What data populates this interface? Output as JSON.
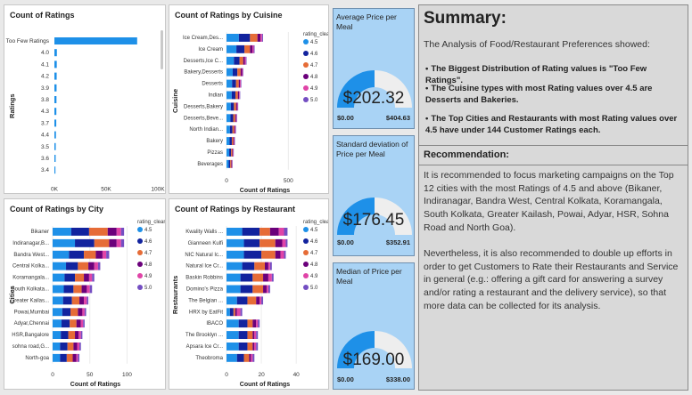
{
  "charts": {
    "ratings": {
      "title": "Count of Ratings",
      "ylabel": "Ratings",
      "xlabel": "Count of Ratings",
      "categories": [
        "Too Few Ratings",
        "4.0",
        "4.1",
        "4.2",
        "3.9",
        "3.8",
        "4.3",
        "3.7",
        "4.4",
        "3.5",
        "3.6",
        "3.4"
      ],
      "values": [
        80000,
        2400,
        2300,
        2200,
        2100,
        2000,
        1900,
        1800,
        1500,
        1300,
        1200,
        1000
      ],
      "ticks": [
        "0K",
        "50K",
        "100K"
      ],
      "tick_values": [
        0,
        50000,
        100000
      ],
      "bar_color": "#1e90e8"
    },
    "cuisine": {
      "title": "Count of Ratings by Cuisine",
      "ylabel": "Cuisine",
      "xlabel": "Count of Ratings",
      "legend_title": "rating_clean",
      "categories": [
        "Ice Cream,Des...",
        "Ice Cream",
        "Desserts,Ice C...",
        "Bakery,Desserts",
        "Desserts",
        "Indian",
        "Desserts,Bakery",
        "Desserts,Beve...",
        "North Indian...",
        "Bakery",
        "Pizzas",
        "Beverages"
      ],
      "ticks": [
        "0",
        "500"
      ],
      "tick_values": [
        0,
        500
      ],
      "xmax": 620
    },
    "city": {
      "title": "Count of Ratings by City",
      "ylabel": "Cities",
      "xlabel": "Count of Ratings",
      "legend_title": "rating_clean",
      "categories": [
        "Bikaner",
        "Indiranagar,B...",
        "Bandra West...",
        "Central Kolka...",
        "Koramangala...",
        "South Kolkata...",
        "Greater Kailas...",
        "Powai,Mumbai",
        "Adyar,Chennai",
        "HSR,Bangalore",
        "sohna road,G...",
        "North-goa"
      ],
      "ticks": [
        "0",
        "50",
        "100"
      ],
      "tick_values": [
        0,
        50,
        100
      ],
      "xmax": 115
    },
    "restaurant": {
      "title": "Count of Ratings by Restaurant",
      "ylabel": "Restaurants",
      "xlabel": "Count of Ratings",
      "legend_title": "rating_clean",
      "categories": [
        "Kwality Walls ...",
        "Gianneen Kulfi",
        "NIC Natural Ic...",
        "Natural Ice Cr...",
        "Baskin Robbins",
        "Domino's Pizza",
        "The Belgian ...",
        "HRX by EatFit",
        "IBACO",
        "The Brooklyn ...",
        "Apsara Ice Cr...",
        "Theobroma"
      ],
      "ticks": [
        "0",
        "20",
        "40"
      ],
      "tick_values": [
        0,
        20,
        40
      ],
      "xmax": 44
    },
    "legend": {
      "labels": [
        "4.5",
        "4.6",
        "4.7",
        "4.8",
        "4.9",
        "5.0"
      ],
      "colors": [
        "#1e90e8",
        "#12239e",
        "#e66c37",
        "#6b007b",
        "#e044a7",
        "#744ec2"
      ]
    },
    "stacked": {
      "cuisine": [
        [
          100,
          90,
          60,
          25,
          12,
          8
        ],
        [
          80,
          65,
          45,
          20,
          10,
          7
        ],
        [
          60,
          45,
          30,
          14,
          8,
          5
        ],
        [
          50,
          38,
          26,
          12,
          6,
          4
        ],
        [
          45,
          32,
          22,
          11,
          6,
          4
        ],
        [
          42,
          30,
          20,
          10,
          5,
          3
        ],
        [
          35,
          25,
          18,
          8,
          5,
          3
        ],
        [
          32,
          22,
          16,
          8,
          4,
          3
        ],
        [
          28,
          20,
          14,
          7,
          4,
          2
        ],
        [
          25,
          18,
          12,
          6,
          3,
          2
        ],
        [
          22,
          15,
          10,
          5,
          3,
          2
        ],
        [
          18,
          12,
          9,
          4,
          2,
          2
        ]
      ],
      "city": [
        [
          25,
          24,
          25,
          12,
          6,
          4
        ],
        [
          30,
          26,
          20,
          10,
          6,
          4
        ],
        [
          22,
          20,
          16,
          9,
          5,
          4
        ],
        [
          18,
          16,
          14,
          8,
          5,
          3
        ],
        [
          16,
          14,
          12,
          7,
          4,
          3
        ],
        [
          15,
          13,
          11,
          7,
          4,
          3
        ],
        [
          14,
          12,
          10,
          6,
          4,
          2
        ],
        [
          13,
          11,
          10,
          6,
          3,
          2
        ],
        [
          12,
          11,
          9,
          6,
          3,
          2
        ],
        [
          11,
          10,
          9,
          5,
          3,
          2
        ],
        [
          10,
          10,
          8,
          5,
          3,
          2
        ],
        [
          10,
          9,
          8,
          5,
          2,
          2
        ]
      ],
      "restaurant": [
        [
          9,
          10,
          6,
          5,
          3,
          2
        ],
        [
          10,
          9,
          9,
          4,
          2,
          1
        ],
        [
          10,
          10,
          8,
          3,
          2,
          1
        ],
        [
          9,
          7,
          6,
          2,
          1,
          1
        ],
        [
          8,
          7,
          6,
          3,
          2,
          1
        ],
        [
          8,
          7,
          6,
          2,
          1,
          1
        ],
        [
          6,
          6,
          5,
          2,
          1,
          1
        ],
        [
          2,
          2,
          1,
          1,
          2,
          1
        ],
        [
          7,
          5,
          3,
          2,
          1,
          1
        ],
        [
          7,
          5,
          3,
          1,
          1,
          1
        ],
        [
          7,
          5,
          3,
          1,
          1,
          1
        ],
        [
          6,
          4,
          3,
          1,
          1,
          1
        ]
      ]
    }
  },
  "cards": [
    {
      "title": "Average Price per Meal",
      "value": "$202.32",
      "min": "$0.00",
      "max": "$404.63",
      "fraction": 0.5
    },
    {
      "title": "Standard deviation of Price per Meal",
      "value": "$176.45",
      "min": "$0.00",
      "max": "$352.91",
      "fraction": 0.5
    },
    {
      "title": "Median of Price per Meal",
      "value": "$169.00",
      "min": "$0.00",
      "max": "$338.00",
      "fraction": 0.5
    }
  ],
  "gauge_colors": {
    "fill": "#1e90e8",
    "track": "#eeeeee",
    "card_bg": "#a9d3f5"
  },
  "summary": {
    "title": "Summary:",
    "intro": "The Analysis of Food/Restaurant Preferences showed:",
    "bullets": [
      "The Biggest Distribution of Rating values is \"Too Few Ratings\".",
      "The Cuisine types with most Rating values over 4.5 are Desserts and Bakeries.",
      "The Top Cities and Restaurants with most Rating values over 4.5 have under 144 Customer Ratings each."
    ],
    "rec_title": "Recommendation:",
    "paragraphs": [
      "It is recommended to focus marketing campaigns on the Top 12 cities with the most Ratings of 4.5 and above (Bikaner, Indiranagar, Bandra West, Central Kolkata, Koramangala, South Kolkata, Greater Kailash, Powai, Adyar, HSR, Sohna Road and North Goa).",
      "Nevertheless, it is also recommended to double up efforts in order to get Customers to Rate their Restaurants and Service in general (e.g.: offering a gift card for answering a survey and/or rating a restaurant and the delivery service), so that more data can be collected for its analysis."
    ]
  }
}
